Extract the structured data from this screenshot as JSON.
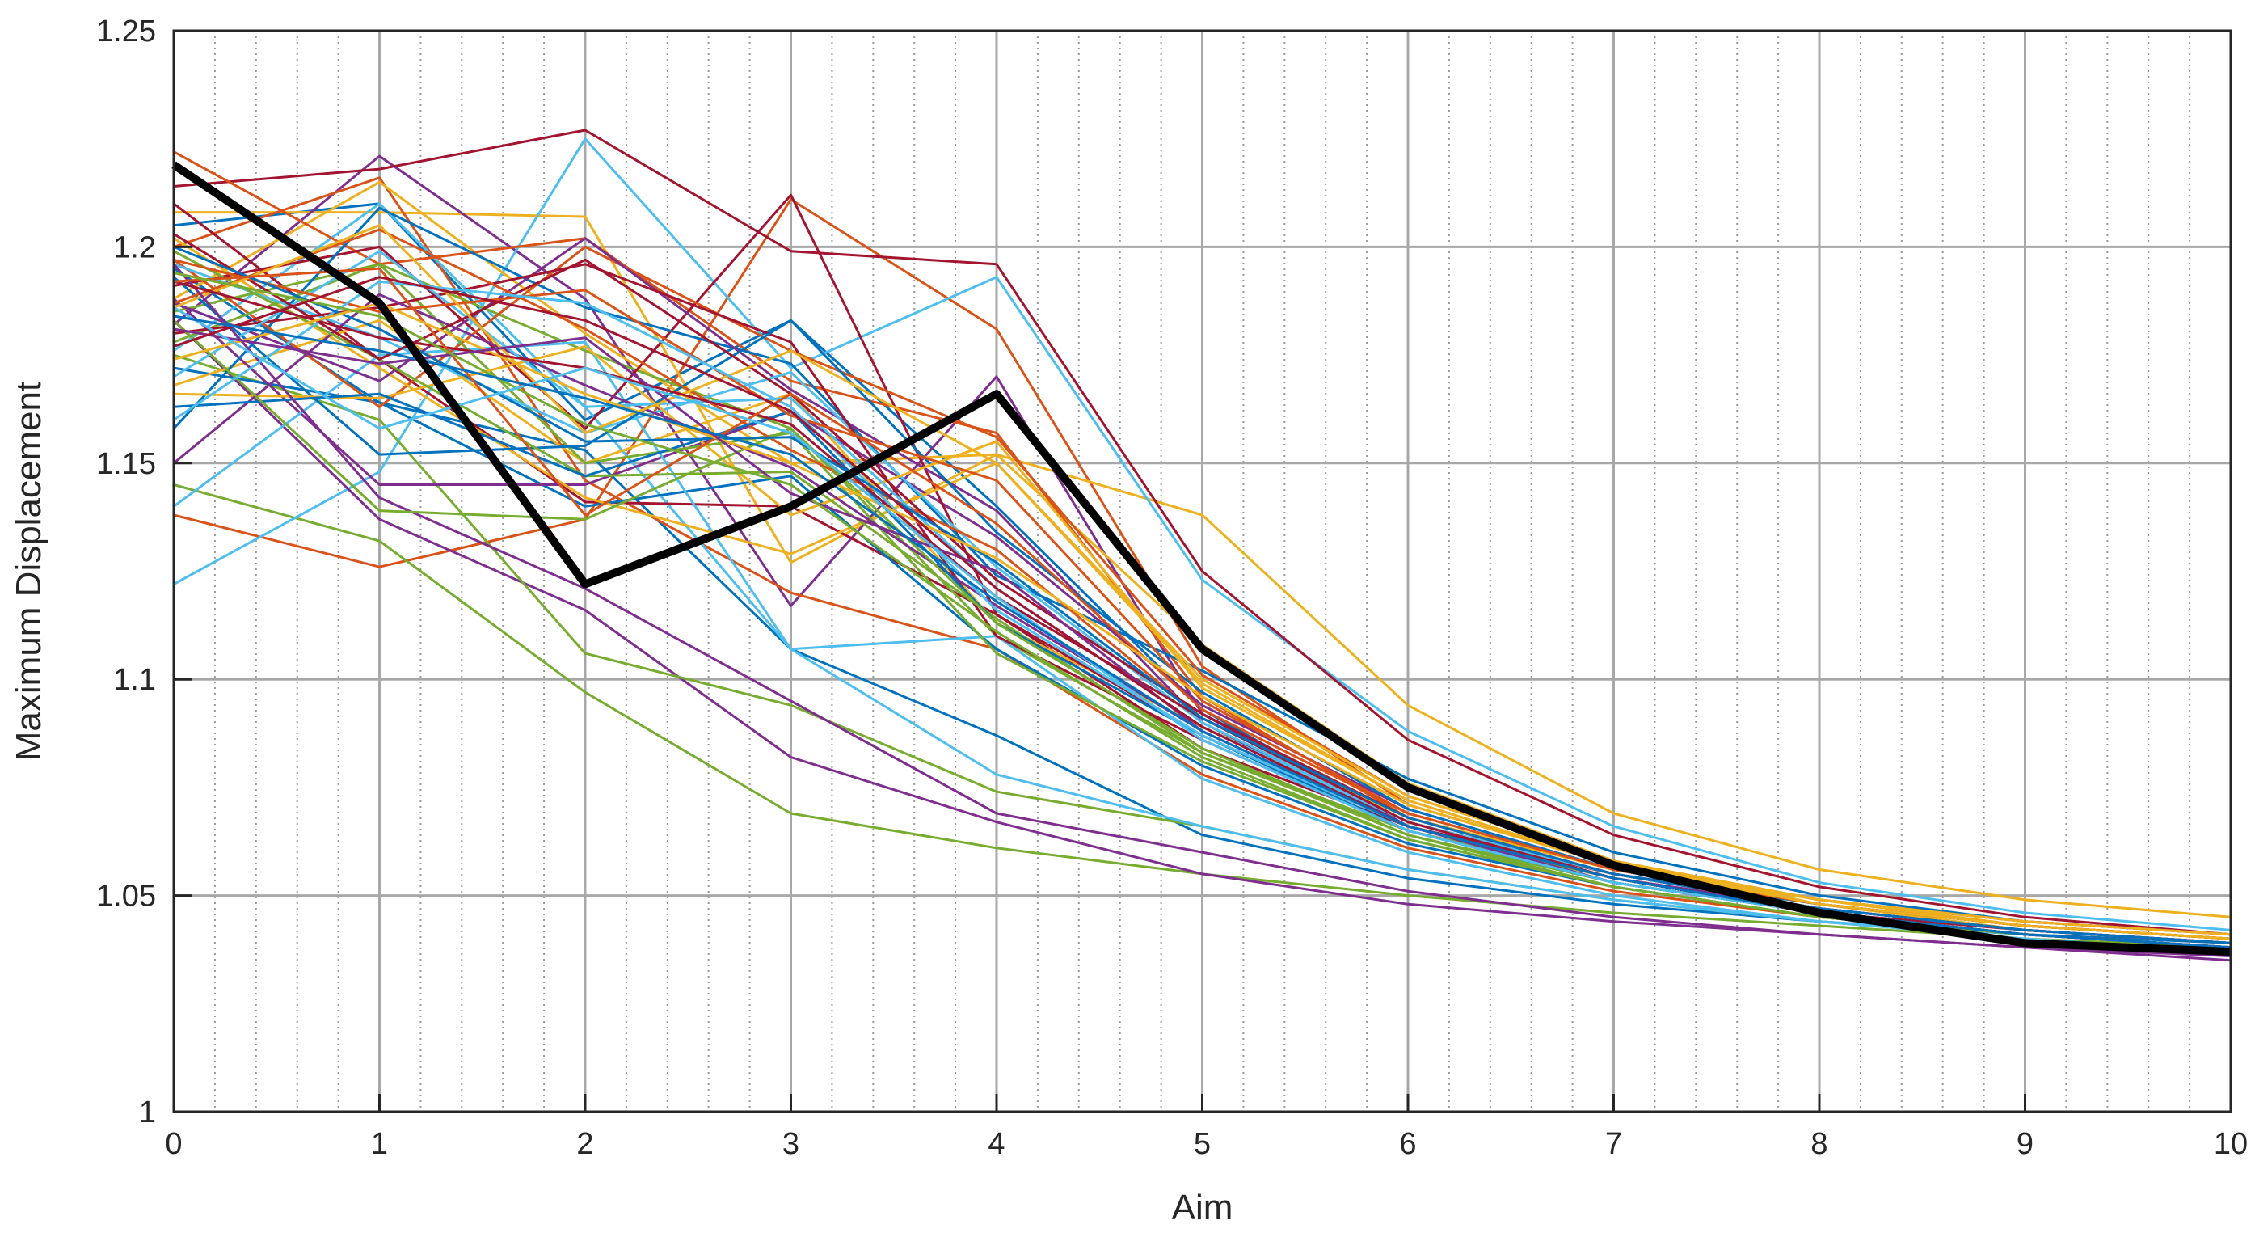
{
  "chart_data": {
    "type": "line",
    "title": "",
    "xlabel": "Aim",
    "ylabel": "Maximum Displacement",
    "xlim": [
      0,
      10
    ],
    "ylim": [
      1.0,
      1.25
    ],
    "xticks": [
      0,
      1,
      2,
      3,
      4,
      5,
      6,
      7,
      8,
      9,
      10
    ],
    "yticks": [
      1,
      1.05,
      1.1,
      1.15,
      1.2,
      1.25
    ],
    "xtick_labels": [
      "0",
      "1",
      "2",
      "3",
      "4",
      "5",
      "6",
      "7",
      "8",
      "9",
      "10"
    ],
    "ytick_labels": [
      "1",
      "1.05",
      "1.1",
      "1.15",
      "1.2",
      "1.25"
    ],
    "grid": "major solid, minor dotted on x",
    "x": [
      0,
      1,
      2,
      3,
      4,
      5,
      6,
      7,
      8,
      9,
      10
    ],
    "highlight": {
      "name": "highlighted run",
      "color": "#000000",
      "values": [
        1.219,
        1.187,
        1.122,
        1.14,
        1.166,
        1.107,
        1.075,
        1.057,
        1.046,
        1.039,
        1.037
      ]
    },
    "series": [
      {
        "color": "#0072BD",
        "values": [
          1.205,
          1.21,
          1.16,
          1.183,
          1.14,
          1.093,
          1.066,
          1.055,
          1.048,
          1.043,
          1.04
        ]
      },
      {
        "color": "#D95319",
        "values": [
          1.138,
          1.126,
          1.137,
          1.211,
          1.181,
          1.103,
          1.071,
          1.057,
          1.049,
          1.044,
          1.041
        ]
      },
      {
        "color": "#EDB120",
        "values": [
          1.208,
          1.208,
          1.207,
          1.127,
          1.152,
          1.138,
          1.094,
          1.069,
          1.056,
          1.049,
          1.045
        ]
      },
      {
        "color": "#7E2F8E",
        "values": [
          1.182,
          1.221,
          1.188,
          1.117,
          1.17,
          1.092,
          1.066,
          1.054,
          1.047,
          1.042,
          1.039
        ]
      },
      {
        "color": "#77AC30",
        "values": [
          1.145,
          1.132,
          1.097,
          1.069,
          1.061,
          1.055,
          1.05,
          1.046,
          1.043,
          1.04,
          1.038
        ]
      },
      {
        "color": "#4DBEEE",
        "values": [
          1.122,
          1.148,
          1.225,
          1.172,
          1.193,
          1.123,
          1.088,
          1.066,
          1.053,
          1.046,
          1.042
        ]
      },
      {
        "color": "#A2142F",
        "values": [
          1.214,
          1.218,
          1.227,
          1.199,
          1.196,
          1.125,
          1.086,
          1.064,
          1.052,
          1.045,
          1.041
        ]
      },
      {
        "color": "#0072BD",
        "values": [
          1.195,
          1.164,
          1.153,
          1.107,
          1.087,
          1.064,
          1.054,
          1.048,
          1.044,
          1.041,
          1.039
        ]
      },
      {
        "color": "#D95319",
        "values": [
          1.2,
          1.216,
          1.146,
          1.12,
          1.107,
          1.078,
          1.061,
          1.051,
          1.045,
          1.041,
          1.038
        ]
      },
      {
        "color": "#EDB120",
        "values": [
          1.188,
          1.215,
          1.18,
          1.15,
          1.152,
          1.108,
          1.076,
          1.058,
          1.048,
          1.042,
          1.039
        ]
      },
      {
        "color": "#7E2F8E",
        "values": [
          1.183,
          1.137,
          1.116,
          1.082,
          1.067,
          1.055,
          1.048,
          1.044,
          1.041,
          1.038,
          1.036
        ]
      },
      {
        "color": "#77AC30",
        "values": [
          1.175,
          1.16,
          1.106,
          1.094,
          1.074,
          1.066,
          1.056,
          1.049,
          1.044,
          1.04,
          1.038
        ]
      },
      {
        "color": "#4DBEEE",
        "values": [
          1.176,
          1.21,
          1.163,
          1.107,
          1.078,
          1.066,
          1.056,
          1.049,
          1.044,
          1.041,
          1.038
        ]
      },
      {
        "color": "#A2142F",
        "values": [
          1.21,
          1.174,
          1.141,
          1.14,
          1.115,
          1.084,
          1.066,
          1.055,
          1.047,
          1.042,
          1.039
        ]
      },
      {
        "color": "#0072BD",
        "values": [
          1.172,
          1.164,
          1.14,
          1.147,
          1.107,
          1.08,
          1.062,
          1.052,
          1.045,
          1.041,
          1.038
        ]
      },
      {
        "color": "#D95319",
        "values": [
          1.222,
          1.196,
          1.202,
          1.169,
          1.157,
          1.096,
          1.068,
          1.055,
          1.047,
          1.042,
          1.039
        ]
      },
      {
        "color": "#EDB120",
        "values": [
          1.168,
          1.183,
          1.15,
          1.166,
          1.113,
          1.089,
          1.068,
          1.056,
          1.048,
          1.043,
          1.04
        ]
      },
      {
        "color": "#7E2F8E",
        "values": [
          1.188,
          1.145,
          1.145,
          1.162,
          1.133,
          1.094,
          1.07,
          1.056,
          1.048,
          1.043,
          1.04
        ]
      },
      {
        "color": "#77AC30",
        "values": [
          1.185,
          1.196,
          1.176,
          1.158,
          1.11,
          1.083,
          1.065,
          1.054,
          1.046,
          1.041,
          1.038
        ]
      },
      {
        "color": "#4DBEEE",
        "values": [
          1.14,
          1.175,
          1.178,
          1.107,
          1.11,
          1.077,
          1.06,
          1.05,
          1.044,
          1.04,
          1.037
        ]
      },
      {
        "color": "#A2142F",
        "values": [
          1.191,
          1.2,
          1.158,
          1.212,
          1.115,
          1.087,
          1.066,
          1.054,
          1.046,
          1.042,
          1.039
        ]
      },
      {
        "color": "#0072BD",
        "values": [
          1.158,
          1.209,
          1.186,
          1.173,
          1.124,
          1.102,
          1.077,
          1.06,
          1.05,
          1.044,
          1.041
        ]
      },
      {
        "color": "#D95319",
        "values": [
          1.197,
          1.163,
          1.2,
          1.176,
          1.156,
          1.101,
          1.073,
          1.058,
          1.049,
          1.044,
          1.041
        ]
      },
      {
        "color": "#EDB120",
        "values": [
          1.202,
          1.172,
          1.142,
          1.129,
          1.15,
          1.1,
          1.073,
          1.058,
          1.049,
          1.044,
          1.041
        ]
      },
      {
        "color": "#7E2F8E",
        "values": [
          1.187,
          1.169,
          1.202,
          1.167,
          1.139,
          1.09,
          1.066,
          1.053,
          1.046,
          1.041,
          1.038
        ]
      },
      {
        "color": "#77AC30",
        "values": [
          1.178,
          1.196,
          1.15,
          1.157,
          1.106,
          1.081,
          1.063,
          1.052,
          1.045,
          1.041,
          1.038
        ]
      },
      {
        "color": "#4DBEEE",
        "values": [
          1.196,
          1.179,
          1.157,
          1.171,
          1.126,
          1.09,
          1.067,
          1.055,
          1.047,
          1.042,
          1.039
        ]
      },
      {
        "color": "#A2142F",
        "values": [
          1.18,
          1.186,
          1.196,
          1.178,
          1.11,
          1.086,
          1.065,
          1.053,
          1.046,
          1.041,
          1.038
        ]
      },
      {
        "color": "#0072BD",
        "values": [
          1.193,
          1.152,
          1.154,
          1.183,
          1.134,
          1.097,
          1.07,
          1.056,
          1.048,
          1.043,
          1.04
        ]
      },
      {
        "color": "#D95319",
        "values": [
          1.187,
          1.204,
          1.181,
          1.153,
          1.13,
          1.091,
          1.067,
          1.055,
          1.047,
          1.042,
          1.039
        ]
      },
      {
        "color": "#EDB120",
        "values": [
          1.166,
          1.165,
          1.177,
          1.138,
          1.155,
          1.098,
          1.072,
          1.057,
          1.049,
          1.043,
          1.04
        ]
      },
      {
        "color": "#7E2F8E",
        "values": [
          1.15,
          1.189,
          1.168,
          1.149,
          1.117,
          1.088,
          1.066,
          1.054,
          1.046,
          1.041,
          1.038
        ]
      },
      {
        "color": "#77AC30",
        "values": [
          1.199,
          1.174,
          1.147,
          1.148,
          1.114,
          1.083,
          1.064,
          1.053,
          1.046,
          1.041,
          1.038
        ]
      },
      {
        "color": "#4DBEEE",
        "values": [
          1.17,
          1.199,
          1.163,
          1.165,
          1.121,
          1.089,
          1.067,
          1.055,
          1.047,
          1.042,
          1.039
        ]
      },
      {
        "color": "#A2142F",
        "values": [
          1.203,
          1.174,
          1.197,
          1.166,
          1.123,
          1.092,
          1.068,
          1.055,
          1.047,
          1.042,
          1.039
        ]
      },
      {
        "color": "#0072BD",
        "values": [
          1.163,
          1.166,
          1.147,
          1.162,
          1.113,
          1.087,
          1.065,
          1.053,
          1.046,
          1.041,
          1.038
        ]
      },
      {
        "color": "#D95319",
        "values": [
          1.197,
          1.185,
          1.19,
          1.161,
          1.146,
          1.095,
          1.069,
          1.056,
          1.048,
          1.043,
          1.04
        ]
      },
      {
        "color": "#EDB120",
        "values": [
          1.186,
          1.205,
          1.157,
          1.176,
          1.15,
          1.099,
          1.072,
          1.057,
          1.049,
          1.043,
          1.04
        ]
      },
      {
        "color": "#7E2F8E",
        "values": [
          1.196,
          1.142,
          1.121,
          1.095,
          1.069,
          1.06,
          1.051,
          1.045,
          1.041,
          1.038,
          1.035
        ]
      },
      {
        "color": "#77AC30",
        "values": [
          1.183,
          1.139,
          1.137,
          1.158,
          1.113,
          1.084,
          1.064,
          1.052,
          1.045,
          1.041,
          1.038
        ]
      },
      {
        "color": "#4DBEEE",
        "values": [
          1.16,
          1.192,
          1.187,
          1.163,
          1.116,
          1.087,
          1.066,
          1.054,
          1.046,
          1.041,
          1.038
        ]
      },
      {
        "color": "#A2142F",
        "values": [
          1.192,
          1.179,
          1.172,
          1.159,
          1.119,
          1.091,
          1.067,
          1.054,
          1.046,
          1.041,
          1.038
        ]
      },
      {
        "color": "#0072BD",
        "values": [
          1.2,
          1.181,
          1.155,
          1.156,
          1.127,
          1.091,
          1.068,
          1.055,
          1.047,
          1.042,
          1.039
        ]
      },
      {
        "color": "#D95319",
        "values": [
          1.192,
          1.195,
          1.138,
          1.166,
          1.136,
          1.093,
          1.069,
          1.056,
          1.048,
          1.043,
          1.04
        ]
      },
      {
        "color": "#EDB120",
        "values": [
          1.174,
          1.187,
          1.166,
          1.15,
          1.128,
          1.096,
          1.071,
          1.057,
          1.048,
          1.043,
          1.04
        ]
      },
      {
        "color": "#7E2F8E",
        "values": [
          1.181,
          1.173,
          1.179,
          1.143,
          1.125,
          1.088,
          1.066,
          1.054,
          1.046,
          1.041,
          1.038
        ]
      },
      {
        "color": "#77AC30",
        "values": [
          1.194,
          1.184,
          1.159,
          1.145,
          1.111,
          1.082,
          1.063,
          1.052,
          1.045,
          1.041,
          1.038
        ]
      },
      {
        "color": "#4DBEEE",
        "values": [
          1.186,
          1.158,
          1.172,
          1.157,
          1.119,
          1.086,
          1.065,
          1.053,
          1.046,
          1.041,
          1.038
        ]
      },
      {
        "color": "#A2142F",
        "values": [
          1.177,
          1.193,
          1.183,
          1.162,
          1.121,
          1.089,
          1.066,
          1.054,
          1.046,
          1.041,
          1.038
        ]
      },
      {
        "color": "#0072BD",
        "values": [
          1.184,
          1.176,
          1.165,
          1.152,
          1.118,
          1.088,
          1.066,
          1.054,
          1.046,
          1.041,
          1.038
        ]
      }
    ]
  }
}
